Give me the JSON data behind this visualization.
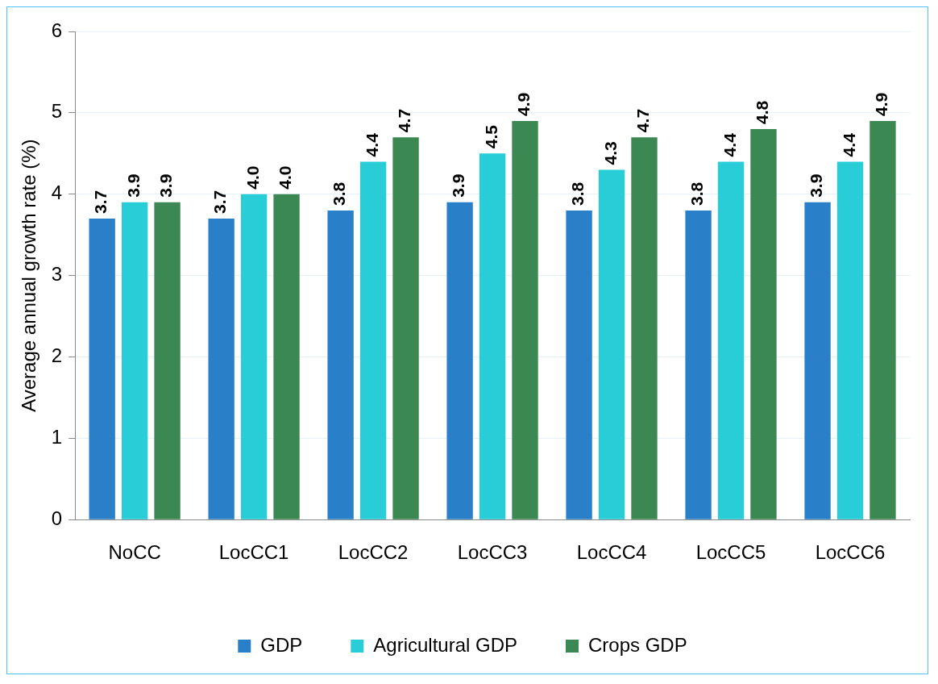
{
  "chart_data": {
    "type": "bar",
    "ylabel": "Average annual growth rate (%)",
    "categories": [
      "NoCC",
      "LocCC1",
      "LocCC2",
      "LocCC3",
      "LocCC4",
      "LocCC5",
      "LocCC6"
    ],
    "series": [
      {
        "name": "GDP",
        "color": "#2a80c8",
        "values": [
          3.7,
          3.7,
          3.8,
          3.9,
          3.8,
          3.8,
          3.9
        ],
        "value_labels": [
          "3.7",
          "3.7",
          "3.8",
          "3.9",
          "3.8",
          "3.8",
          "3.9"
        ]
      },
      {
        "name": "Agricultural GDP",
        "color": "#29cdd8",
        "values": [
          3.9,
          4.0,
          4.4,
          4.5,
          4.3,
          4.4,
          4.4
        ],
        "value_labels": [
          "3.9",
          "4.0",
          "4.4",
          "4.5",
          "4.3",
          "4.4",
          "4.4"
        ]
      },
      {
        "name": "Crops GDP",
        "color": "#3c8852",
        "values": [
          3.9,
          4.0,
          4.7,
          4.9,
          4.7,
          4.8,
          4.9
        ],
        "value_labels": [
          "3.9",
          "4.0",
          "4.7",
          "4.9",
          "4.7",
          "4.8",
          "4.9"
        ]
      }
    ],
    "ylim": [
      0,
      6
    ],
    "yticks": [
      0,
      1,
      2,
      3,
      4,
      5,
      6
    ],
    "grid": "y",
    "legend": "bottom"
  }
}
